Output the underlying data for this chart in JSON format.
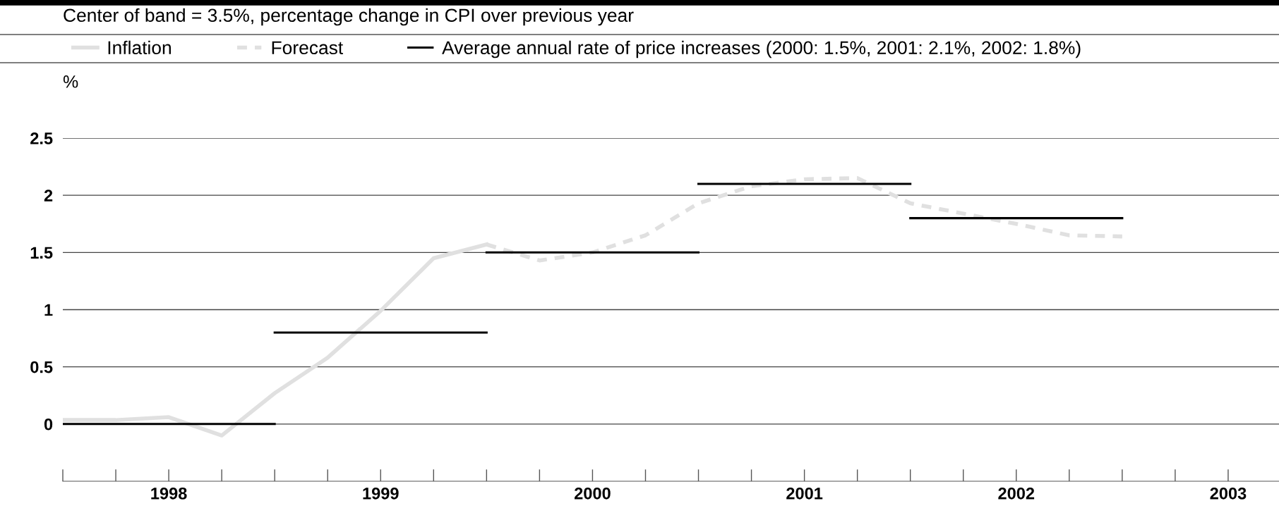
{
  "chart_data": {
    "type": "line",
    "title": "Center of band = 3.5%, percentage change in CPI over previous year",
    "ylabel": "%",
    "series": [
      {
        "name": "Inflation",
        "color": "#e0e0e0",
        "line_style": "solid",
        "x": [
          1997.5,
          1997.75,
          1998.0,
          1998.25,
          1998.5,
          1998.75,
          1999.0,
          1999.25,
          1999.5
        ],
        "values": [
          0.035,
          0.035,
          0.06,
          -0.1,
          0.27,
          0.58,
          0.99,
          1.45,
          1.57
        ]
      },
      {
        "name": "Forecast",
        "color": "#e0e0e0",
        "line_style": "dashed",
        "x": [
          1999.5,
          1999.75,
          2000.0,
          2000.25,
          2000.5,
          2000.75,
          2001.0,
          2001.25,
          2001.5,
          2001.75,
          2002.0,
          2002.25,
          2002.5
        ],
        "values": [
          1.57,
          1.43,
          1.5,
          1.65,
          1.93,
          2.08,
          2.14,
          2.15,
          1.93,
          1.84,
          1.75,
          1.65,
          1.64
        ]
      },
      {
        "name": "Average annual rate of price increases (2000: 1.5%, 2001: 2.1%, 2002: 1.8%)",
        "color": "#000000",
        "line_style": "solid",
        "x": [
          1997.5,
          1998.5
        ],
        "values": [
          0,
          0
        ]
      },
      {
        "color": "#000000",
        "line_style": "solid",
        "x": [
          1998.5,
          1999.5
        ],
        "values": [
          0.8,
          0.8
        ]
      },
      {
        "color": "#000000",
        "line_style": "solid",
        "x": [
          1999.5,
          2000.5
        ],
        "values": [
          1.5,
          1.5
        ]
      },
      {
        "color": "#000000",
        "line_style": "solid",
        "x": [
          2000.5,
          2001.5
        ],
        "values": [
          2.1,
          2.1
        ]
      },
      {
        "color": "#000000",
        "line_style": "solid",
        "x": [
          2001.5,
          2002.5
        ],
        "values": [
          1.8,
          1.8
        ]
      }
    ],
    "xlim": [
      1997.5,
      2003.24
    ],
    "xticks": [
      1998,
      1999,
      2000,
      2001,
      2002,
      2003
    ],
    "ylim": [
      -0.5,
      2.5
    ],
    "yticks": [
      0,
      0.5,
      1,
      1.5,
      2,
      2.5
    ],
    "grid": "y",
    "legend": "top",
    "marker": "none"
  }
}
